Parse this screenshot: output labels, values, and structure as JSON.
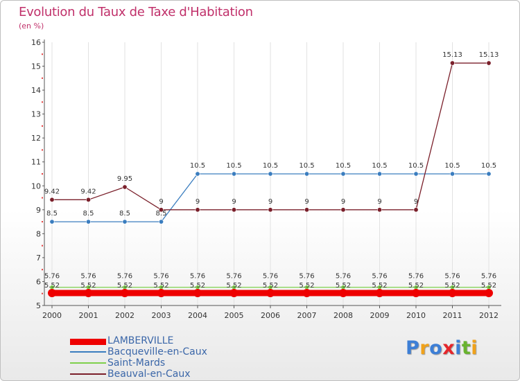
{
  "title": "Evolution du Taux de Taxe d'Habitation",
  "subtitle": "(en %)",
  "brand": {
    "text": "Proxiti",
    "letters": [
      {
        "ch": "P",
        "color": "#3d7fd6"
      },
      {
        "ch": "r",
        "color": "#f0a21b"
      },
      {
        "ch": "o",
        "color": "#3d7fd6"
      },
      {
        "ch": "x",
        "color": "#e5262b"
      },
      {
        "ch": "i",
        "color": "#3d7fd6"
      },
      {
        "ch": "t",
        "color": "#68b32e"
      },
      {
        "ch": "i",
        "color": "#f0a21b"
      }
    ]
  },
  "chart_data": {
    "type": "line",
    "title": "Evolution du Taux de Taxe d'Habitation",
    "ylabel": "(en %)",
    "xlabel": "",
    "x": [
      "2000",
      "2001",
      "2002",
      "2003",
      "2004",
      "2005",
      "2006",
      "2007",
      "2008",
      "2009",
      "2010",
      "2011",
      "2012"
    ],
    "ylim": [
      5,
      16
    ],
    "yticks": [
      5,
      6,
      7,
      8,
      9,
      10,
      11,
      12,
      13,
      14,
      15,
      16
    ],
    "legend_position": "bottom-left",
    "series": [
      {
        "name": "LAMBERVILLE",
        "color": "#ee0000",
        "width": "thick",
        "values": [
          5.52,
          5.52,
          5.52,
          5.52,
          5.52,
          5.52,
          5.52,
          5.52,
          5.52,
          5.52,
          5.52,
          5.52,
          5.52
        ],
        "labels": [
          "5.52",
          "5.52",
          "5.52",
          "5.52",
          "5.52",
          "5.52",
          "5.52",
          "5.52",
          "5.52",
          "5.52",
          "5.52",
          "5.52",
          "5.52"
        ]
      },
      {
        "name": "Bacqueville-en-Caux",
        "color": "#3a7dbf",
        "width": "thin",
        "values": [
          8.5,
          8.5,
          8.5,
          8.5,
          10.5,
          10.5,
          10.5,
          10.5,
          10.5,
          10.5,
          10.5,
          10.5,
          10.5
        ],
        "labels": [
          "8.5",
          "8.5",
          "8.5",
          "8.5",
          "10.5",
          "10.5",
          "10.5",
          "10.5",
          "10.5",
          "10.5",
          "10.5",
          "10.5",
          "10.5"
        ]
      },
      {
        "name": "Saint-Mards",
        "color": "#7ed04b",
        "width": "thin",
        "values": [
          5.76,
          5.76,
          5.76,
          5.76,
          5.76,
          5.76,
          5.76,
          5.76,
          5.76,
          5.76,
          5.76,
          5.76,
          5.76
        ],
        "labels": [
          "5.76",
          "5.76",
          "5.76",
          "5.76",
          "5.76",
          "5.76",
          "5.76",
          "5.76",
          "5.76",
          "5.76",
          "5.76",
          "5.76",
          "5.76"
        ]
      },
      {
        "name": "Beauval-en-Caux",
        "color": "#7a1f2a",
        "width": "thin",
        "values": [
          9.42,
          9.42,
          9.95,
          9,
          9,
          9,
          9,
          9,
          9,
          9,
          9,
          15.13,
          15.13
        ],
        "labels": [
          "9.42",
          "9.42",
          "9.95",
          "9",
          "9",
          "9",
          "9",
          "9",
          "9",
          "9",
          "9",
          "15.13",
          "15.13"
        ]
      }
    ]
  }
}
